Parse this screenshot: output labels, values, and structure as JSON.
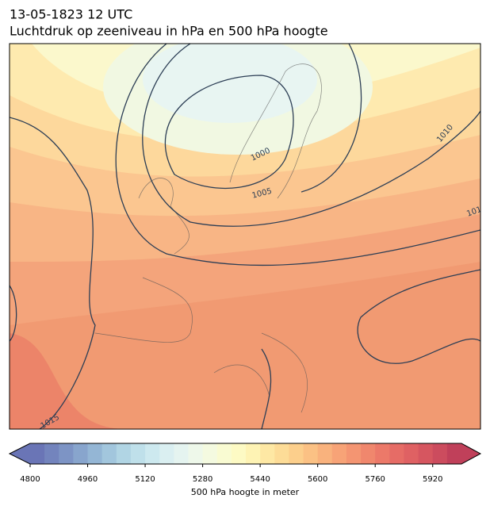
{
  "header": {
    "date": "13-05-1823 12 UTC",
    "title": "Luchtdruk op zeeniveau in hPa en 500 hPa hoogte"
  },
  "map": {
    "contour_labels": [
      "1000",
      "1005",
      "1010",
      "101",
      "1015"
    ]
  },
  "colorbar": {
    "lim": [
      4800,
      6000
    ],
    "ticks": [
      4800,
      4960,
      5120,
      5280,
      5440,
      5600,
      5760,
      5920
    ],
    "label": "500 hPa hoogte in meter",
    "colors": [
      "#6a75b6",
      "#7384bd",
      "#7d94c5",
      "#88a5cd",
      "#94b6d5",
      "#a2c6dd",
      "#b1d5e4",
      "#bfe0ea",
      "#cde9ef",
      "#daeff1",
      "#e5f4f0",
      "#eef8ea",
      "#f4fae0",
      "#f9fbd2",
      "#fdfac4",
      "#fef3b4",
      "#fee8a4",
      "#fddc97",
      "#fccf8c",
      "#fbc184",
      "#f9b27d",
      "#f7a377",
      "#f49572",
      "#f0876d",
      "#ec7969",
      "#e66c66",
      "#df6163",
      "#d65660",
      "#cc4c5e",
      "#c0405a"
    ]
  }
}
